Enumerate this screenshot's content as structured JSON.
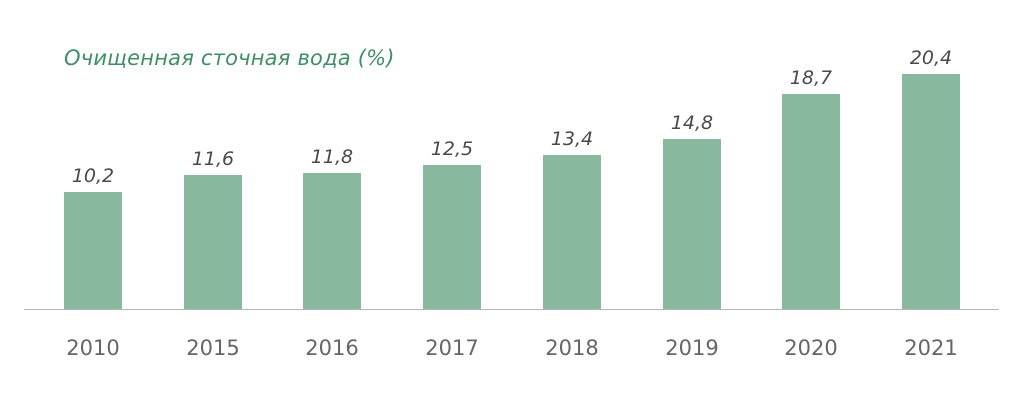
{
  "chart_data": {
    "type": "bar",
    "title": "Очищенная сточная вода (%)",
    "xlabel": "",
    "ylabel": "",
    "categories": [
      "2010",
      "2015",
      "2016",
      "2017",
      "2018",
      "2019",
      "2020",
      "2021"
    ],
    "values": [
      10.2,
      11.6,
      11.8,
      12.5,
      13.4,
      14.8,
      18.7,
      20.4
    ],
    "value_labels": [
      "10,2",
      "11,6",
      "11,8",
      "12,5",
      "13,4",
      "14,8",
      "18,7",
      "20,4"
    ],
    "ylim": [
      0,
      21
    ],
    "grid": false,
    "legend": null,
    "colors": {
      "bar": "#88b89e",
      "title": "#3f8f66",
      "axis": "#b5b5b5"
    }
  }
}
